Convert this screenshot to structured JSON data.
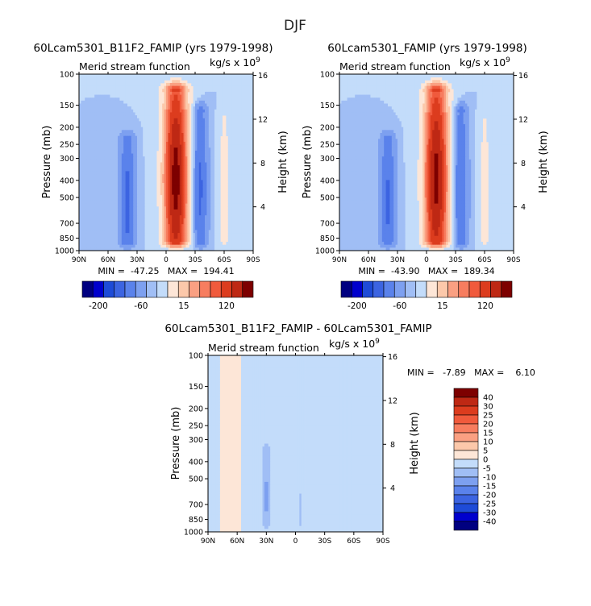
{
  "figure": {
    "title": "DJF"
  },
  "panels": {
    "left": {
      "title": "60Lcam5301_B11F2_FAMIP (yrs 1979-1998)",
      "subtitle": "Merid stream function",
      "units_base": "kg/s x 10",
      "units_exp": "9",
      "ylabel": "Pressure (mb)",
      "y2label": "Height (km)",
      "stats": "MIN =  -47.25   MAX =  194.41"
    },
    "right": {
      "title": "60Lcam5301_FAMIP (yrs 1979-1998)",
      "subtitle": "Merid stream function",
      "units_base": "kg/s x 10",
      "units_exp": "9",
      "ylabel": "Pressure (mb)",
      "y2label": "Height (km)",
      "stats": "MIN =  -43.90   MAX =  189.34"
    },
    "diff": {
      "title": "60Lcam5301_B11F2_FAMIP - 60Lcam5301_FAMIP",
      "subtitle": "Merid stream function",
      "units_base": "kg/s x 10",
      "units_exp": "9",
      "ylabel": "Pressure (mb)",
      "y2label": "Height (km)",
      "stats": "MIN =   -7.89   MAX =    6.10"
    }
  },
  "colors": {
    "scale": [
      "#000080",
      "#0000cd",
      "#1e4bd7",
      "#3c64e1",
      "#5a82eb",
      "#7da0f0",
      "#a0bef5",
      "#c3dcfa",
      "#fde6d7",
      "#fcc8aa",
      "#faa082",
      "#f77d5f",
      "#f05a3c",
      "#dc3c1e",
      "#be2814",
      "#7d0000"
    ],
    "neutral_pos": "#fde6d7",
    "neutral_neg": "#c3dcfa"
  },
  "chart_data": [
    {
      "type": "heatmap",
      "name": "left",
      "variable": "Merid stream function",
      "x_tick_labels": [
        "90N",
        "60N",
        "30N",
        "0",
        "30S",
        "60S",
        "90S"
      ],
      "y_tick_labels": [
        "100",
        "150",
        "200",
        "250",
        "300",
        "400",
        "500",
        "700",
        "850",
        "1000"
      ],
      "y2_tick_labels": [
        "4",
        "8",
        "12",
        "16"
      ],
      "xlim": [
        "90N",
        "90S"
      ],
      "ylim_mb": [
        1000,
        100
      ],
      "min": -47.25,
      "max": 194.41,
      "colorbar_tick_labels": [
        "-200",
        "-60",
        "15",
        "120"
      ],
      "features": [
        {
          "lat": -10,
          "lat_half_width": 12,
          "top_mb": 125,
          "peak": 194.41
        },
        {
          "lat": 40,
          "lat_half_width": 7,
          "top_mb": 240,
          "peak": -47.25
        },
        {
          "lat": -35,
          "lat_half_width": 7,
          "top_mb": 165,
          "peak": -45
        },
        {
          "lat": -60,
          "lat_half_width": 5,
          "top_mb": 185,
          "peak": 30
        }
      ]
    },
    {
      "type": "heatmap",
      "name": "right",
      "variable": "Merid stream function",
      "x_tick_labels": [
        "90N",
        "60N",
        "30N",
        "0",
        "30S",
        "60S",
        "90S"
      ],
      "y_tick_labels": [
        "100",
        "150",
        "200",
        "250",
        "300",
        "400",
        "500",
        "700",
        "850",
        "1000"
      ],
      "y2_tick_labels": [
        "4",
        "8",
        "12",
        "16"
      ],
      "xlim": [
        "90N",
        "90S"
      ],
      "ylim_mb": [
        1000,
        100
      ],
      "min": -43.9,
      "max": 189.34,
      "colorbar_tick_labels": [
        "-200",
        "-60",
        "15",
        "120"
      ],
      "features": [
        {
          "lat": -10,
          "lat_half_width": 12,
          "top_mb": 125,
          "peak": 189.34
        },
        {
          "lat": 40,
          "lat_half_width": 7,
          "top_mb": 240,
          "peak": -43.9
        },
        {
          "lat": -35,
          "lat_half_width": 7,
          "top_mb": 165,
          "peak": -42
        },
        {
          "lat": -60,
          "lat_half_width": 5,
          "top_mb": 185,
          "peak": 28
        }
      ]
    },
    {
      "type": "heatmap",
      "name": "difference",
      "variable": "Merid stream function",
      "x_tick_labels": [
        "90N",
        "60N",
        "30N",
        "0",
        "30S",
        "60S",
        "90S"
      ],
      "y_tick_labels": [
        "100",
        "150",
        "200",
        "250",
        "300",
        "400",
        "500",
        "700",
        "850",
        "1000"
      ],
      "y2_tick_labels": [
        "4",
        "8",
        "12",
        "16"
      ],
      "xlim": [
        "90N",
        "90S"
      ],
      "ylim_mb": [
        1000,
        100
      ],
      "min": -7.89,
      "max": 6.1,
      "colorbar_tick_labels": [
        "40",
        "30",
        "25",
        "20",
        "15",
        "10",
        "5",
        "0",
        "-5",
        "-10",
        "-15",
        "-20",
        "-25",
        "-30",
        "-40"
      ],
      "features": [
        {
          "lat": 30,
          "lat_half_width": 4,
          "top_mb": 350,
          "peak": -7.89
        },
        {
          "lat": -5,
          "lat_half_width": 2,
          "top_mb": 650,
          "peak": -4
        }
      ]
    }
  ]
}
